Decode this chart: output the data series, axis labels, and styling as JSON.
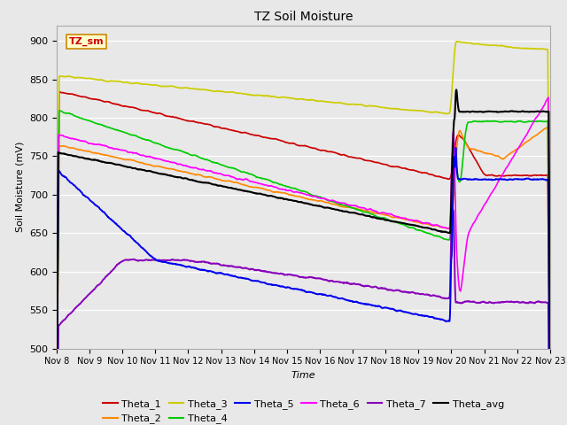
{
  "title": "TZ Soil Moisture",
  "ylabel": "Soil Moisture (mV)",
  "xlabel": "Time",
  "ylim": [
    500,
    920
  ],
  "yticks": [
    500,
    550,
    600,
    650,
    700,
    750,
    800,
    850,
    900
  ],
  "xtick_labels": [
    "Nov 8",
    "Nov 9",
    "Nov 10",
    "Nov 11",
    "Nov 12",
    "Nov 13",
    "Nov 14",
    "Nov 15",
    "Nov 16",
    "Nov 17",
    "Nov 18",
    "Nov 19",
    "Nov 20",
    "Nov 21",
    "Nov 22",
    "Nov 23"
  ],
  "bg_color": "#e8e8e8",
  "legend_label": "TZ_sm",
  "colors": {
    "Theta_1": "#cc0000",
    "Theta_2": "#ff8800",
    "Theta_3": "#cccc00",
    "Theta_4": "#00cc00",
    "Theta_5": "#0000ee",
    "Theta_6": "#ff00ff",
    "Theta_7": "#8800bb",
    "Theta_avg": "#000000"
  },
  "spike_day": 12.0,
  "n_points": 2000
}
